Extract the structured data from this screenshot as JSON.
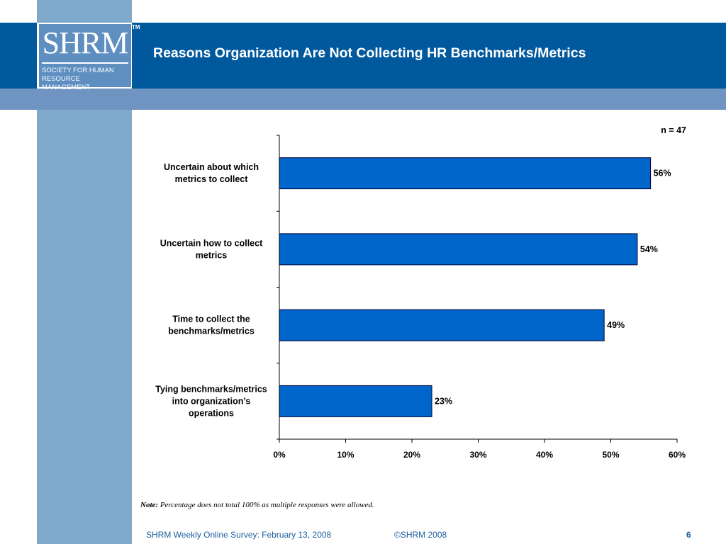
{
  "slide": {
    "title": "Reasons Organization Are Not Collecting HR Benchmarks/Metrics",
    "note_label": "Note:",
    "note_text": "Percentage does not total 100% as multiple responses were allowed.",
    "footer_source": "SHRM Weekly Online Survey: February  13, 2008",
    "footer_copyright": "©SHRM 2008",
    "page_number": "6"
  },
  "logo": {
    "mark": "SHRM",
    "tagline_line1": "SOCIETY FOR HUMAN",
    "tagline_line2": "RESOURCE MANAGEMENT",
    "tm": "TM"
  },
  "colors": {
    "header": "#00599d",
    "sub_band": "#6f94c2",
    "left_strip": "#7fa9cb",
    "bar_fill": "#0066cc",
    "bar_stroke": "#000033",
    "footer_text": "#1c5ea0"
  },
  "chart_data": {
    "type": "bar",
    "orientation": "horizontal",
    "annotation": "n = 47",
    "categories": [
      [
        "Uncertain about which",
        "metrics to collect"
      ],
      [
        "Uncertain how to collect",
        "metrics"
      ],
      [
        "Time to collect the",
        "benchmarks/metrics"
      ],
      [
        "Tying benchmarks/metrics",
        "into organization’s",
        "operations"
      ]
    ],
    "values": [
      56,
      54,
      49,
      23
    ],
    "value_labels": [
      "56%",
      "54%",
      "49%",
      "23%"
    ],
    "xlim": [
      0,
      60
    ],
    "xticks": [
      0,
      10,
      20,
      30,
      40,
      50,
      60
    ],
    "xtick_labels": [
      "0%",
      "10%",
      "20%",
      "30%",
      "40%",
      "50%",
      "60%"
    ],
    "grid": false,
    "legend": "none"
  }
}
